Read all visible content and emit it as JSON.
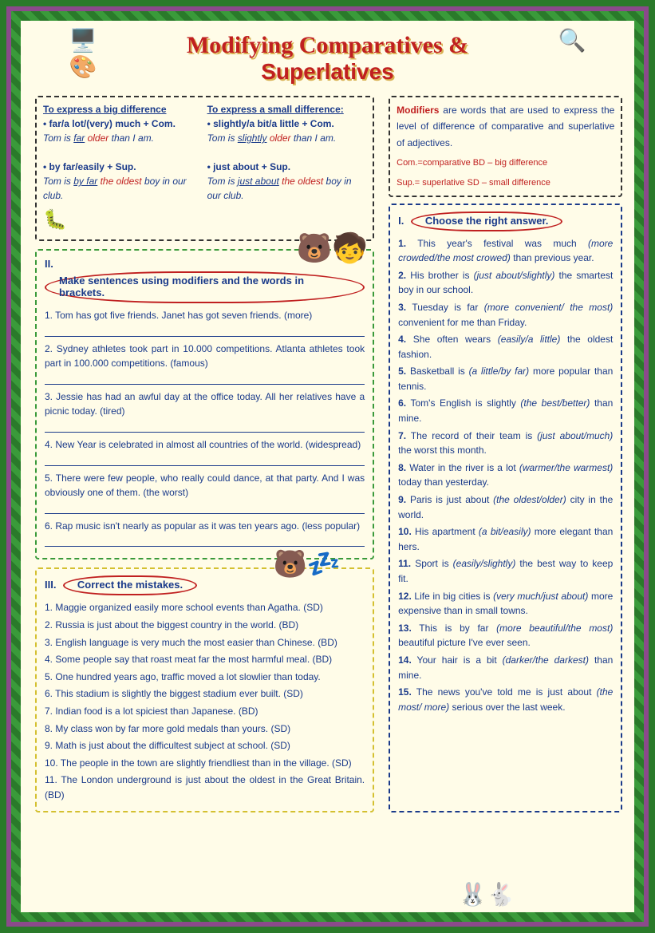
{
  "title": "Modifying Comparatives &",
  "subtitle": "Superlatives",
  "top_box": {
    "big": {
      "heading": "To express a big difference",
      "rule1": "• far/a lot/(very) much + Com.",
      "ex1_a": "Tom is ",
      "ex1_b": "far",
      "ex1_c": " older",
      "ex1_d": " than I am.",
      "rule2": "• by far/easily + Sup.",
      "ex2_a": "Tom is ",
      "ex2_b": "by far",
      "ex2_c": " the oldest",
      "ex2_d": " boy in our club."
    },
    "small": {
      "heading": "To express a small difference:",
      "rule1": "• slightly/a bit/a little + Com.",
      "ex1_a": "Tom is ",
      "ex1_b": "slightly",
      "ex1_c": " older",
      "ex1_d": " than I am.",
      "rule2": "• just about + Sup.",
      "ex2_a": "Tom is ",
      "ex2_b": "just about",
      "ex2_c": " the oldest",
      "ex2_d": " boy in our club."
    }
  },
  "mod_box": {
    "intro_a": "Modifiers",
    "intro_b": " are words that are used to express the level of difference of comparative and superlative of adjectives.",
    "legend1": "Com.=comparative   BD – big difference",
    "legend2": "Sup.= superlative   SD – small difference"
  },
  "ex1": {
    "roman": "I.",
    "title": "Choose the right answer.",
    "items": [
      {
        "n": "1.",
        "a": "This year's festival was much ",
        "o": "(more crowded/the most crowed)",
        "b": " than previous year."
      },
      {
        "n": "2.",
        "a": "His brother is ",
        "o": "(just about/slightly)",
        "b": " the smartest boy in our school."
      },
      {
        "n": "3.",
        "a": "Tuesday is far ",
        "o": "(more convenient/ the most)",
        "b": " convenient for me than Friday."
      },
      {
        "n": "4.",
        "a": "She often wears ",
        "o": "(easily/a little)",
        "b": " the oldest fashion."
      },
      {
        "n": "5.",
        "a": "Basketball is ",
        "o": "(a little/by far)",
        "b": " more popular than tennis."
      },
      {
        "n": "6.",
        "a": "Tom's English is slightly ",
        "o": "(the best/better)",
        "b": " than mine."
      },
      {
        "n": "7.",
        "a": "The record of their team is ",
        "o": "(just about/much)",
        "b": " the worst this month."
      },
      {
        "n": "8.",
        "a": "Water in the river is a lot ",
        "o": "(warmer/the warmest)",
        "b": " today than yesterday."
      },
      {
        "n": "9.",
        "a": "Paris is just about ",
        "o": "(the oldest/older)",
        "b": " city in the world."
      },
      {
        "n": "10.",
        "a": "His apartment ",
        "o": "(a bit/easily)",
        "b": " more elegant than hers."
      },
      {
        "n": "11.",
        "a": "Sport is ",
        "o": "(easily/slightly)",
        "b": " the best way to keep fit."
      },
      {
        "n": "12.",
        "a": "Life in big cities is ",
        "o": "(very much/just about)",
        "b": " more expensive than in small towns."
      },
      {
        "n": "13.",
        "a": "This is by far ",
        "o": "(more beautiful/the most)",
        "b": " beautiful picture I've ever seen."
      },
      {
        "n": "14.",
        "a": "Your hair is a bit ",
        "o": "(darker/the darkest)",
        "b": " than mine."
      },
      {
        "n": "15.",
        "a": "The news you've told me is just about ",
        "o": "(the most/ more)",
        "b": " serious over the last week."
      }
    ]
  },
  "ex2": {
    "roman": "II.",
    "title": "Make sentences using modifiers and the words in   brackets.",
    "items": [
      "1. Tom has got five friends. Janet has got seven friends. (more)",
      "2. Sydney athletes took part in 10.000 competitions. Atlanta athletes took part in 100.000 competitions. (famous)",
      "3. Jessie has had an awful day at the office today. All her relatives have a picnic today. (tired)",
      "4. New Year is celebrated in almost all countries of the world. (widespread)",
      "5. There were few people, who really could dance, at that party. And I was obviously one of them. (the worst)",
      "6. Rap music isn't nearly as popular as it was ten years ago. (less popular)"
    ]
  },
  "ex3": {
    "roman": "III.",
    "title": "Correct the mistakes.",
    "items": [
      "1. Maggie organized easily more school events than Agatha. (SD)",
      "2. Russia is just about the biggest country in the world. (BD)",
      "3. English language is very much the most easier than Chinese. (BD)",
      "4. Some people say that roast meat far the most harmful meal. (BD)",
      "5. One hundred years ago, traffic moved a lot slowlier than today.",
      "6. This stadium is slightly the biggest stadium ever built. (SD)",
      "7. Indian food is a lot spiciest than Japanese. (BD)",
      "8. My class won by far more gold medals than yours. (SD)",
      "9. Math is just about the difficultest subject at school. (SD)",
      "10. The people in the town are slightly friendliest than in the village. (SD)",
      "11. The London underground is just about the oldest in the Great Britain. (BD)"
    ]
  }
}
